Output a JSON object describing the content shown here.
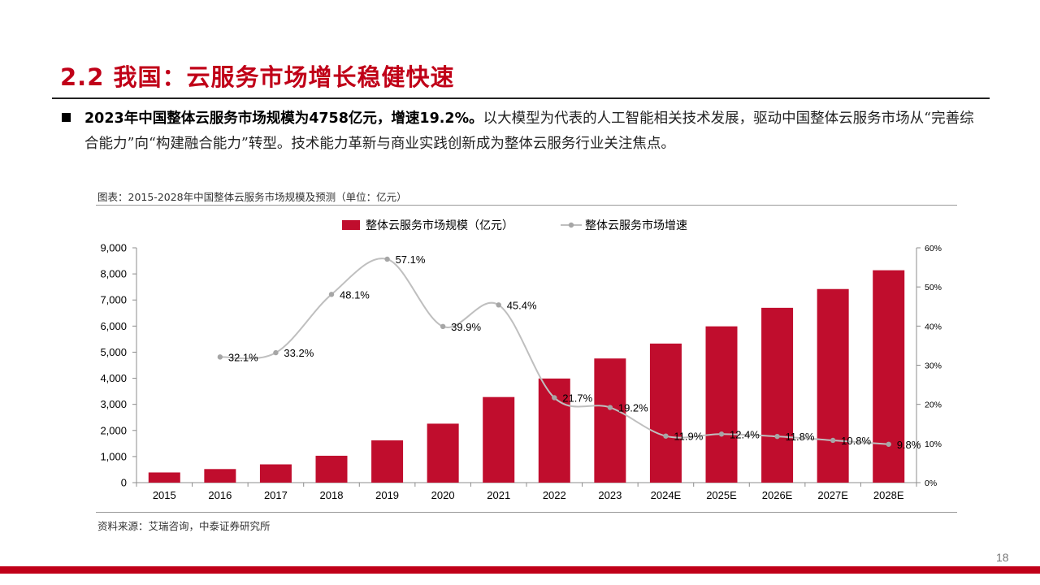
{
  "slide": {
    "title": "2.2 我国：云服务市场增长稳健快速",
    "paragraph_bold": "2023年中国整体云服务市场规模为4758亿元，增速19.2%。",
    "paragraph_rest": "以大模型为代表的人工智能相关技术发展，驱动中国整体云服务市场从“完善综合能力”向“构建融合能力”转型。技术能力革新与商业实践创新成为整体云服务行业关注焦点。",
    "figure_caption": "图表：2015-2028年中国整体云服务市场规模及预测（单位：亿元）",
    "source": "资料来源：艾瑞咨询，中泰证券研究所",
    "page_number": "18"
  },
  "colors": {
    "accent": "#c00018",
    "bar": "#c00d2d",
    "line": "#bfbfbf"
  },
  "chart_data": {
    "type": "bar",
    "categories": [
      "2015",
      "2016",
      "2017",
      "2018",
      "2019",
      "2020",
      "2021",
      "2022",
      "2023",
      "2024E",
      "2025E",
      "2026E",
      "2027E",
      "2028E"
    ],
    "series": [
      {
        "name": "整体云服务市场规模（亿元）",
        "type": "bar",
        "axis": "left",
        "values": [
          390,
          520,
          700,
          1030,
          1620,
          2260,
          3280,
          3990,
          4758,
          5330,
          5990,
          6700,
          7420,
          8140
        ]
      },
      {
        "name": "整体云服务市场增速",
        "type": "line",
        "axis": "right",
        "values": [
          null,
          32.1,
          33.2,
          48.1,
          57.1,
          39.9,
          45.4,
          21.7,
          19.2,
          11.9,
          12.4,
          11.8,
          10.8,
          9.8
        ],
        "labels": [
          "",
          "32.1%",
          "33.2%",
          "48.1%",
          "57.1%",
          "39.9%",
          "45.4%",
          "21.7%",
          "19.2%",
          "11.9%",
          "12.4%",
          "11.8%",
          "10.8%",
          "9.8%"
        ]
      }
    ],
    "ylim": [
      0,
      9000
    ],
    "yticks": [
      "0",
      "1,000",
      "2,000",
      "3,000",
      "4,000",
      "5,000",
      "6,000",
      "7,000",
      "8,000",
      "9,000"
    ],
    "y2lim": [
      0,
      60
    ],
    "y2ticks": [
      "0%",
      "10%",
      "20%",
      "30%",
      "40%",
      "50%",
      "60%"
    ],
    "legend_position": "top",
    "grid": false
  }
}
